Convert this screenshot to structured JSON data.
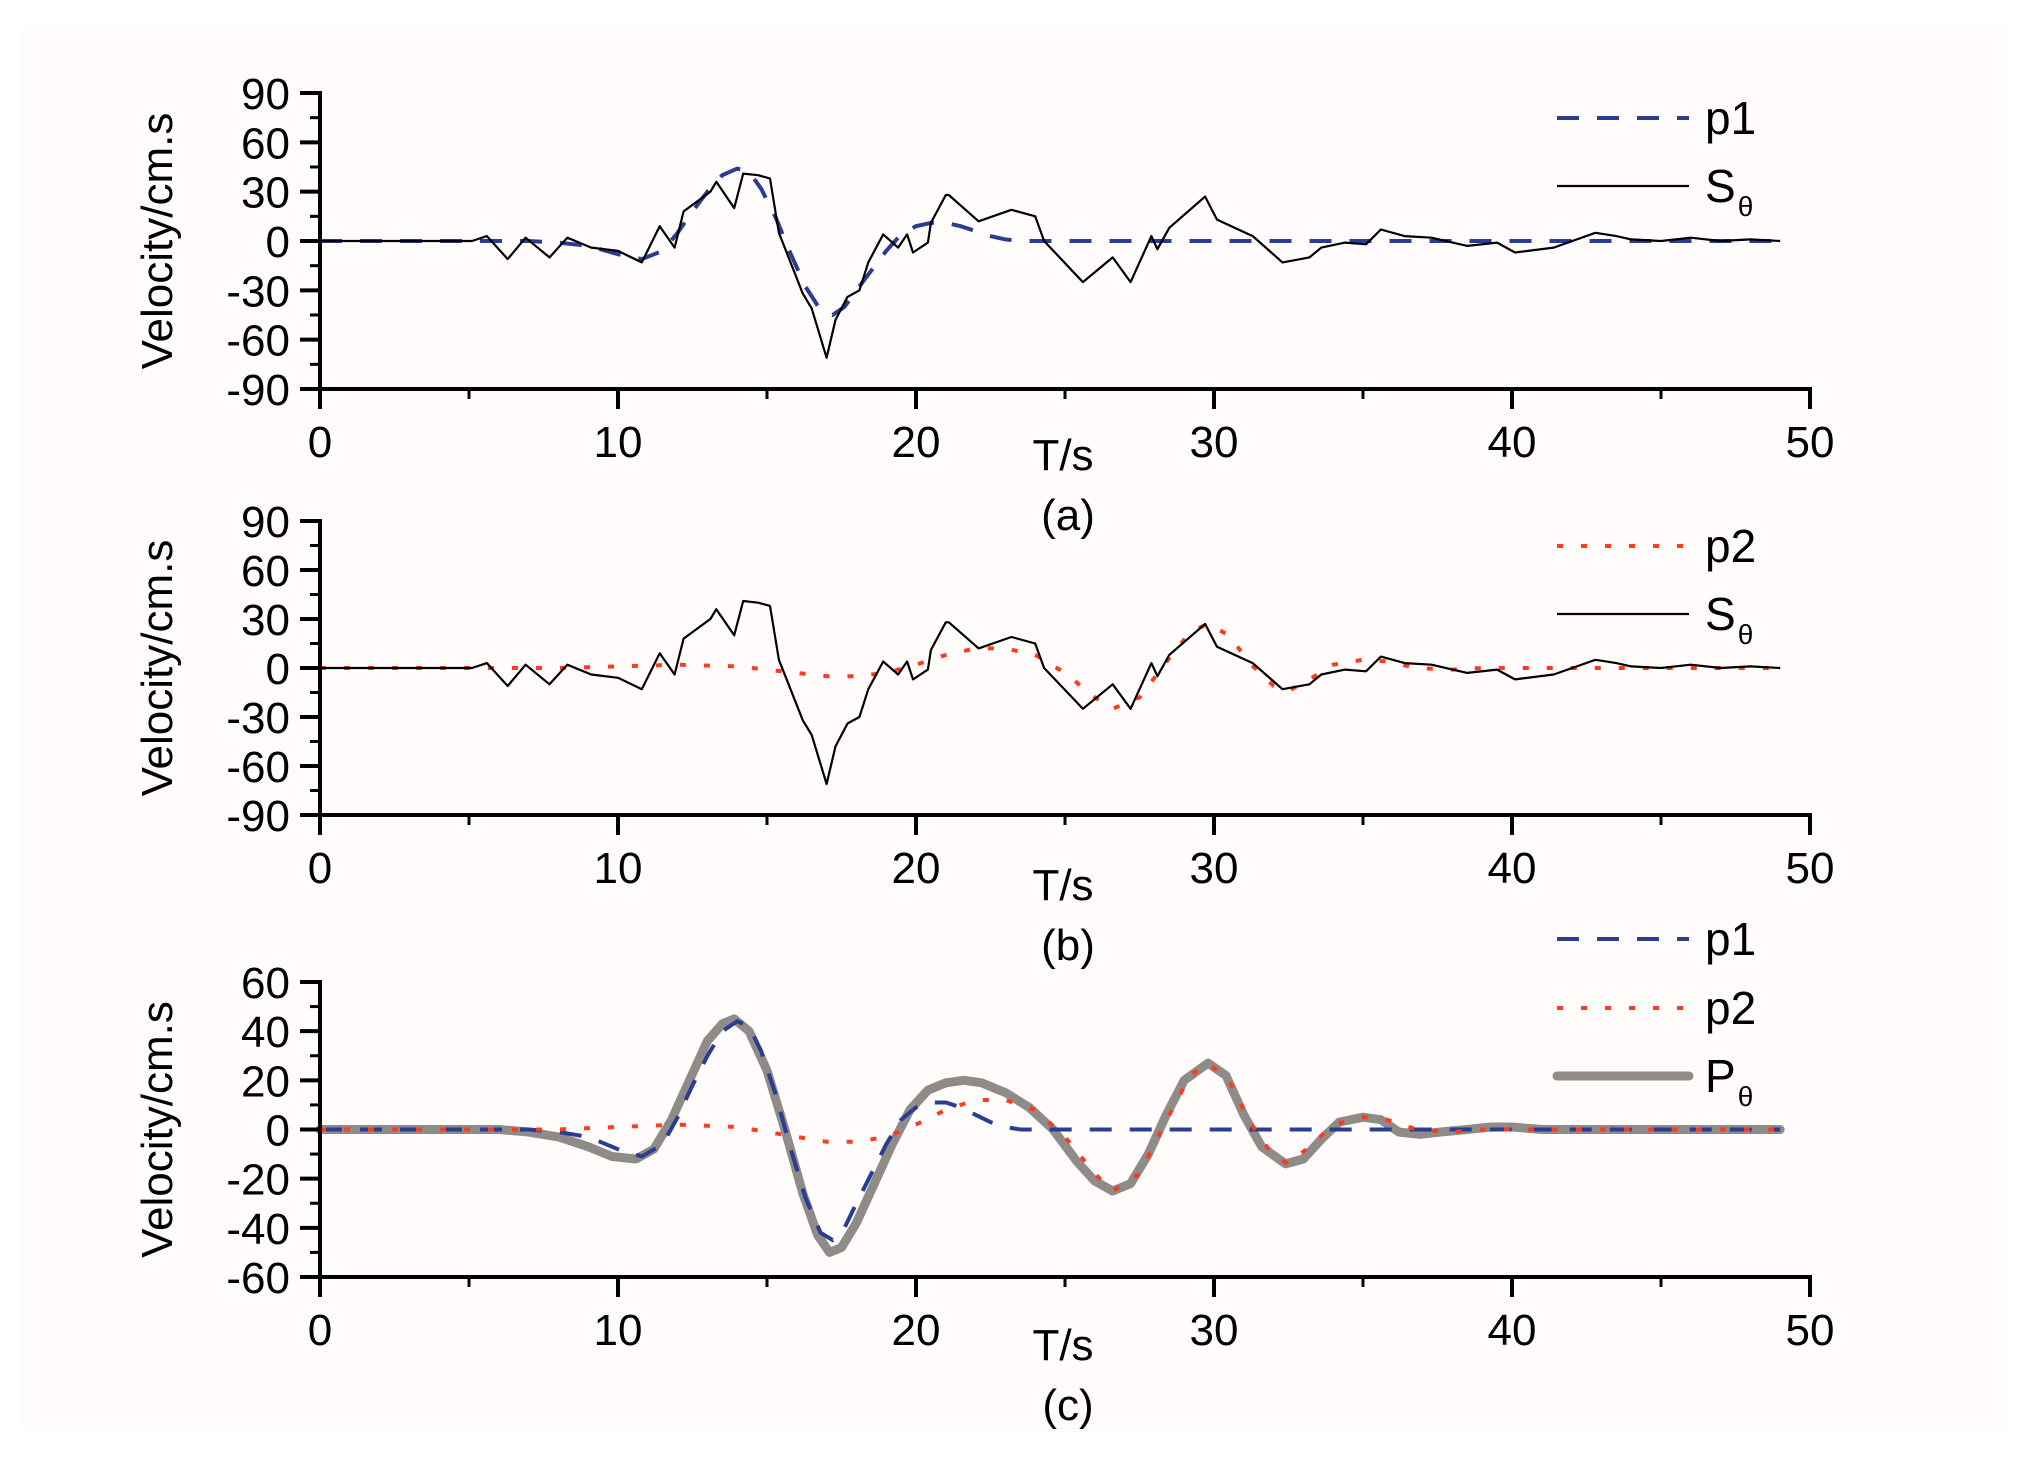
{
  "figure": {
    "background": "#fffcfb",
    "colors": {
      "p1": "#2b3d91",
      "p2": "#ff3b1f",
      "S": "#000000",
      "P": "#8f8b88"
    }
  },
  "chart_data": [
    {
      "id": "a",
      "type": "line",
      "caption": "(a)",
      "xlabel": "T/s",
      "ylabel": "Velocity/cm.s",
      "xlim": [
        0,
        50
      ],
      "ylim": [
        -90,
        90
      ],
      "xticks": [
        0,
        10,
        20,
        30,
        40,
        50
      ],
      "yticks": [
        90,
        60,
        30,
        0,
        -30,
        -60,
        -90
      ],
      "grid": false,
      "legend_position": "upper right",
      "legend": [
        {
          "label": "p1",
          "sub": "",
          "series": "p1"
        },
        {
          "label": "S",
          "sub": "θ",
          "series": "S"
        }
      ],
      "series": [
        {
          "name": "p1",
          "style": "dashed",
          "x": [
            0,
            5,
            7,
            8,
            9,
            10,
            10.8,
            11.5,
            12,
            12.5,
            13,
            13.5,
            14,
            14.4,
            14.8,
            15.3,
            15.8,
            16.3,
            16.8,
            17.2,
            17.6,
            18,
            18.5,
            19,
            19.5,
            20,
            20.5,
            21,
            21.5,
            22,
            22.5,
            23,
            23.5,
            24,
            25,
            30,
            35,
            40,
            45,
            49
          ],
          "y": [
            0,
            0,
            0,
            -1,
            -3,
            -8,
            -11,
            -6,
            5,
            18,
            30,
            40,
            44,
            42,
            32,
            14,
            -8,
            -28,
            -42,
            -45,
            -40,
            -30,
            -18,
            -6,
            4,
            9,
            11,
            11,
            9,
            6,
            3,
            1,
            0,
            0,
            0,
            0,
            0,
            0,
            0,
            0
          ]
        },
        {
          "name": "S",
          "style": "solid",
          "x": [
            0,
            5.1,
            5.6,
            6.3,
            6.9,
            7.7,
            8.3,
            9.1,
            10,
            10.8,
            11.4,
            11.9,
            12.2,
            13.1,
            13.3,
            13.9,
            14.2,
            14.7,
            15.1,
            15.4,
            16.2,
            16.5,
            17,
            17.3,
            17.7,
            18.1,
            18.4,
            18.9,
            19.4,
            19.7,
            19.9,
            20.4,
            20.5,
            21,
            21.1,
            22.1,
            23.2,
            24,
            24.3,
            25.6,
            26.6,
            27.2,
            27.9,
            28.1,
            28.5,
            29.7,
            30.1,
            31.3,
            32.3,
            33.2,
            33.6,
            34.4,
            35.1,
            35.6,
            36.4,
            37.3,
            38.5,
            39.5,
            40.1,
            41.4,
            42.8,
            43.5,
            44,
            45,
            46,
            47,
            48,
            49
          ],
          "y": [
            0,
            0,
            3,
            -11,
            2,
            -10,
            2,
            -4,
            -6,
            -13,
            9,
            -4,
            18,
            30,
            36,
            20,
            41,
            40,
            38,
            5,
            -32,
            -41,
            -71,
            -48,
            -34,
            -30,
            -13,
            4,
            -4,
            4,
            -7,
            -1,
            11,
            28,
            28,
            12,
            19,
            15,
            0,
            -25,
            -10,
            -25,
            3,
            -5,
            8,
            27,
            13,
            3,
            -13,
            -10,
            -4,
            -1,
            -2,
            7,
            3,
            2,
            -3,
            -1,
            -7,
            -4,
            5,
            3,
            1,
            0,
            2,
            0,
            1,
            0
          ]
        }
      ]
    },
    {
      "id": "b",
      "type": "line",
      "caption": "(b)",
      "xlabel": "T/s",
      "ylabel": "Velocity/cm.s",
      "xlim": [
        0,
        50
      ],
      "ylim": [
        -90,
        90
      ],
      "xticks": [
        0,
        10,
        20,
        30,
        40,
        50
      ],
      "yticks": [
        90,
        60,
        30,
        0,
        -30,
        -60,
        -90
      ],
      "grid": false,
      "legend_position": "upper right",
      "legend": [
        {
          "label": "p2",
          "sub": "",
          "series": "p2"
        },
        {
          "label": "S",
          "sub": "θ",
          "series": "S"
        }
      ],
      "series": [
        {
          "name": "p2",
          "style": "dotted",
          "x": [
            0,
            8,
            10,
            12,
            14,
            16,
            17,
            18,
            19,
            20,
            21,
            22,
            23,
            24,
            25,
            26,
            26.6,
            27.5,
            28.5,
            29.2,
            29.8,
            30.5,
            31.2,
            32,
            32.5,
            33.2,
            34,
            35,
            35.8,
            36.8,
            38,
            39,
            40,
            42,
            44,
            46,
            48,
            49
          ],
          "y": [
            0,
            0,
            1,
            2,
            1,
            -3,
            -5,
            -5,
            -3,
            2,
            8,
            12,
            12,
            8,
            -3,
            -18,
            -25,
            -18,
            6,
            22,
            27,
            20,
            3,
            -11,
            -14,
            -7,
            2,
            5,
            4,
            0,
            -1,
            0,
            0,
            0,
            0,
            0,
            0,
            0
          ]
        },
        {
          "name": "S",
          "style": "solid",
          "ref": "a.S"
        }
      ]
    },
    {
      "id": "c",
      "type": "line",
      "caption": "(c)",
      "xlabel": "T/s",
      "ylabel": "Velocity/cm.s",
      "xlim": [
        0,
        50
      ],
      "ylim": [
        -60,
        60
      ],
      "xticks": [
        0,
        10,
        20,
        30,
        40,
        50
      ],
      "yticks": [
        60,
        40,
        20,
        0,
        -20,
        -40,
        -60
      ],
      "grid": false,
      "legend_position": "upper right",
      "legend": [
        {
          "label": "p1",
          "sub": "",
          "series": "p1"
        },
        {
          "label": "p2",
          "sub": "",
          "series": "p2"
        },
        {
          "label": "P",
          "sub": "θ",
          "series": "P"
        }
      ],
      "series": [
        {
          "name": "P",
          "style": "thick",
          "x": [
            0,
            6,
            7,
            8,
            9,
            9.8,
            10.6,
            11.2,
            11.8,
            12.4,
            13,
            13.5,
            13.9,
            14.4,
            15,
            15.6,
            16.2,
            16.7,
            17.1,
            17.5,
            18,
            18.6,
            19.2,
            19.8,
            20.4,
            21,
            21.6,
            22.2,
            23,
            23.8,
            24.6,
            25.4,
            26,
            26.6,
            27.2,
            27.8,
            28.4,
            29,
            29.8,
            30.4,
            31,
            31.6,
            32.4,
            33,
            33.6,
            34.2,
            35,
            35.6,
            36.2,
            36.9,
            37.6,
            38.5,
            39.3,
            40,
            41,
            43,
            46,
            49
          ],
          "y": [
            0,
            0,
            -1,
            -3,
            -7,
            -11,
            -12,
            -8,
            4,
            20,
            36,
            43,
            45,
            40,
            24,
            0,
            -26,
            -43,
            -50,
            -48,
            -38,
            -22,
            -6,
            8,
            16,
            19,
            20,
            19,
            15,
            9,
            0,
            -13,
            -21,
            -25,
            -22,
            -10,
            6,
            20,
            27,
            22,
            6,
            -7,
            -14,
            -12,
            -4,
            3,
            5,
            4,
            -1,
            -2,
            -1,
            0,
            1,
            1,
            0,
            0,
            0,
            0
          ]
        },
        {
          "name": "p1",
          "style": "dashed",
          "ref": "a.p1"
        },
        {
          "name": "p2",
          "style": "dotted",
          "ref": "b.p2"
        }
      ]
    }
  ]
}
